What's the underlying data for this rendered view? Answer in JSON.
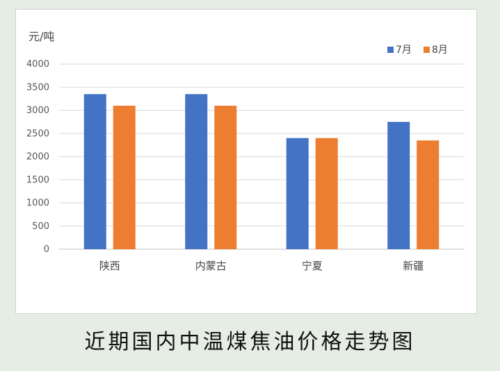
{
  "caption": "近期国内中温煤焦油价格走势图",
  "chart_data": {
    "type": "bar",
    "title": "",
    "ylabel": "元/吨",
    "xlabel": "",
    "categories": [
      "陕西",
      "内蒙古",
      "宁夏",
      "新疆"
    ],
    "series": [
      {
        "name": "7月",
        "color": "#4472c4",
        "values": [
          3350,
          3350,
          2400,
          2750
        ]
      },
      {
        "name": "8月",
        "color": "#ed7d31",
        "values": [
          3100,
          3100,
          2400,
          2350
        ]
      }
    ],
    "ylim": [
      0,
      4000
    ],
    "yticks": [
      0,
      500,
      1000,
      1500,
      2000,
      2500,
      3000,
      3500,
      4000
    ],
    "grid": true,
    "legend": "top-right"
  }
}
